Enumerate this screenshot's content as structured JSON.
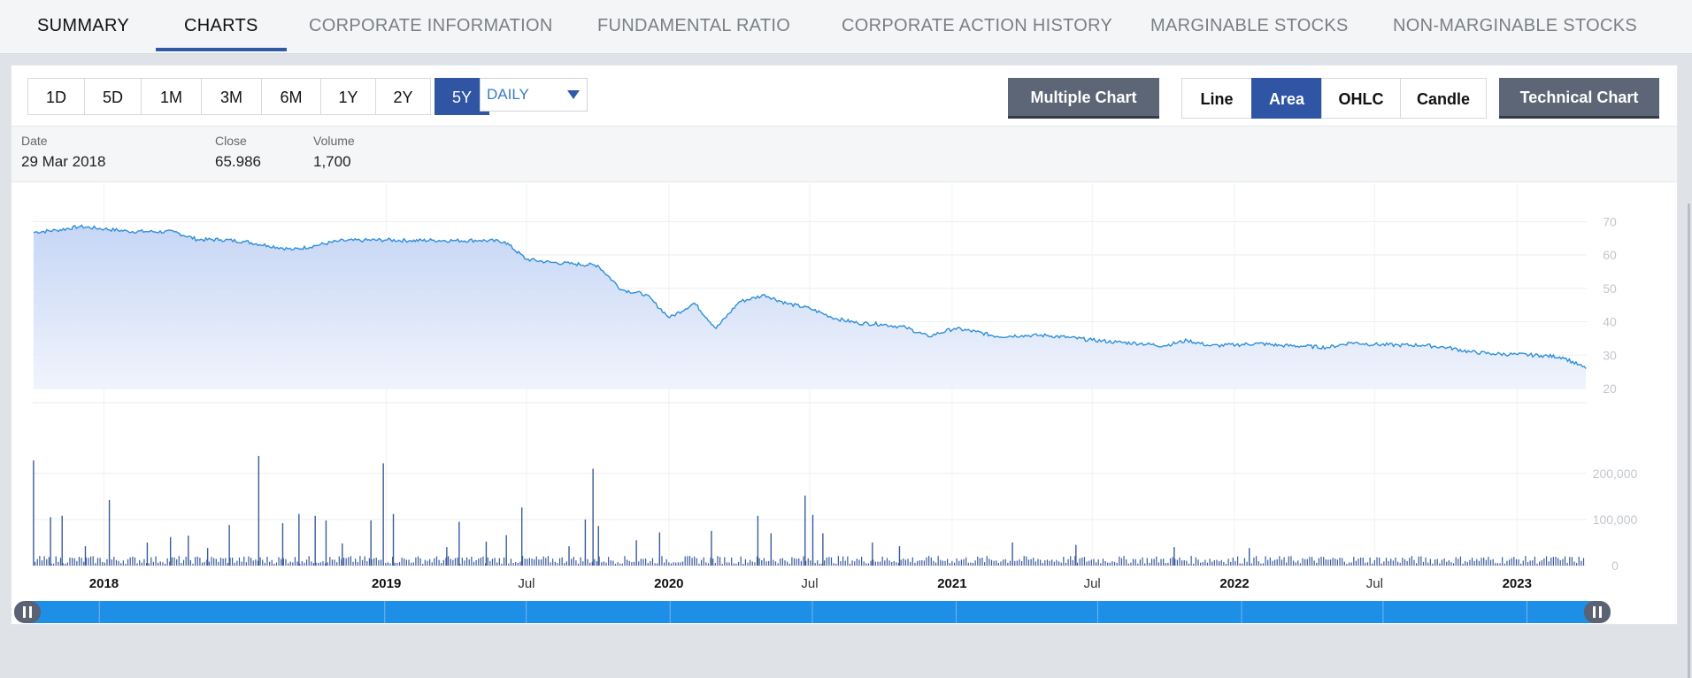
{
  "tabs": [
    {
      "label": "SUMMARY"
    },
    {
      "label": "CHARTS"
    },
    {
      "label": "CORPORATE INFORMATION"
    },
    {
      "label": "FUNDAMENTAL RATIO"
    },
    {
      "label": "CORPORATE ACTION HISTORY"
    },
    {
      "label": "MARGINABLE STOCKS"
    },
    {
      "label": "NON-MARGINABLE STOCKS"
    }
  ],
  "active_tab": "CHARTS",
  "toolbar": {
    "ranges": [
      "1D",
      "5D",
      "1M",
      "3M",
      "6M",
      "1Y",
      "2Y",
      "5Y"
    ],
    "selected_range": "5Y",
    "interval": "DAILY",
    "multiple_chart": "Multiple Chart",
    "series_types": [
      "Line",
      "Area",
      "OHLC",
      "Candle"
    ],
    "selected_series_type": "Area",
    "technical_chart": "Technical Chart"
  },
  "info": {
    "date_label": "Date",
    "date_value": "29 Mar 2018",
    "close_label": "Close",
    "close_value": "65.986",
    "volume_label": "Volume",
    "volume_value": "1,700"
  },
  "colors": {
    "accent": "#2f55a4",
    "line": "#2f8fd8",
    "volume": "#3a5a9a",
    "navigator": "#1e8fe6"
  },
  "chart_data": {
    "type": "area",
    "price": {
      "x": [
        "2017-10-02",
        "2017-11-01",
        "2017-12-01",
        "2018-01-02",
        "2018-02-01",
        "2018-03-01",
        "2018-04-02",
        "2018-05-02",
        "2018-06-01",
        "2018-07-02",
        "2018-08-01",
        "2018-09-03",
        "2018-10-01",
        "2018-11-01",
        "2018-12-03",
        "2019-01-02",
        "2019-02-01",
        "2019-03-01",
        "2019-04-01",
        "2019-05-02",
        "2019-06-03",
        "2019-07-01",
        "2019-08-01",
        "2019-09-02",
        "2019-10-01",
        "2019-11-01",
        "2019-12-02",
        "2020-01-02",
        "2020-02-03",
        "2020-03-02",
        "2020-04-01",
        "2020-05-04",
        "2020-06-01",
        "2020-07-01",
        "2020-08-03",
        "2020-09-01",
        "2020-10-01",
        "2020-11-02",
        "2020-12-01",
        "2021-01-04",
        "2021-02-01",
        "2021-03-01",
        "2021-04-01",
        "2021-05-03",
        "2021-06-01",
        "2021-07-01",
        "2021-08-02",
        "2021-09-01",
        "2021-10-01",
        "2021-11-01",
        "2021-12-01",
        "2022-01-03",
        "2022-02-01",
        "2022-03-01",
        "2022-04-01",
        "2022-05-02",
        "2022-06-01",
        "2022-07-01",
        "2022-08-01",
        "2022-09-01",
        "2022-10-03",
        "2022-11-01",
        "2022-12-01",
        "2023-01-02",
        "2023-02-01",
        "2023-03-01",
        "2023-03-31"
      ],
      "values": [
        66.8,
        67.4,
        68.5,
        67.8,
        67.1,
        67.0,
        66.9,
        64.6,
        64.6,
        64.0,
        62.8,
        61.6,
        62.8,
        64.2,
        64.4,
        64.5,
        64.3,
        64.4,
        64.3,
        64.4,
        64.0,
        58.7,
        57.8,
        57.3,
        56.9,
        49.6,
        48.2,
        41.2,
        45.6,
        38.0,
        46.0,
        48.0,
        45.5,
        44.0,
        41.0,
        39.6,
        39.3,
        38.3,
        35.6,
        38.0,
        37.0,
        35.6,
        35.9,
        35.9,
        35.3,
        34.5,
        33.9,
        33.5,
        32.8,
        34.4,
        32.8,
        33.1,
        33.5,
        32.9,
        32.7,
        32.3,
        33.8,
        33.2,
        33.0,
        33.0,
        32.3,
        31.0,
        30.4,
        30.2,
        29.9,
        29.4,
        26.0
      ],
      "yticks": [
        20,
        30,
        40,
        50,
        60,
        70
      ]
    },
    "volume": {
      "yticks": [
        0,
        100000,
        200000
      ],
      "tick_labels": [
        "0",
        "100,000",
        "200,000"
      ],
      "spikes": [
        {
          "date": "2017-10-02",
          "v": 228000
        },
        {
          "date": "2017-10-24",
          "v": 105000
        },
        {
          "date": "2017-11-08",
          "v": 108000
        },
        {
          "date": "2017-12-08",
          "v": 42000
        },
        {
          "date": "2018-01-08",
          "v": 142000
        },
        {
          "date": "2018-02-26",
          "v": 50000
        },
        {
          "date": "2018-03-28",
          "v": 62000
        },
        {
          "date": "2018-04-20",
          "v": 65000
        },
        {
          "date": "2018-05-15",
          "v": 38000
        },
        {
          "date": "2018-06-12",
          "v": 88000
        },
        {
          "date": "2018-07-20",
          "v": 238000
        },
        {
          "date": "2018-08-20",
          "v": 92000
        },
        {
          "date": "2018-09-10",
          "v": 112000
        },
        {
          "date": "2018-10-01",
          "v": 108000
        },
        {
          "date": "2018-10-15",
          "v": 98000
        },
        {
          "date": "2018-11-05",
          "v": 48000
        },
        {
          "date": "2018-12-12",
          "v": 98000
        },
        {
          "date": "2018-12-28",
          "v": 222000
        },
        {
          "date": "2019-01-10",
          "v": 112000
        },
        {
          "date": "2019-03-20",
          "v": 40000
        },
        {
          "date": "2019-04-05",
          "v": 95000
        },
        {
          "date": "2019-05-10",
          "v": 52000
        },
        {
          "date": "2019-06-05",
          "v": 66000
        },
        {
          "date": "2019-06-25",
          "v": 126000
        },
        {
          "date": "2019-08-25",
          "v": 42000
        },
        {
          "date": "2019-09-15",
          "v": 100000
        },
        {
          "date": "2019-09-25",
          "v": 210000
        },
        {
          "date": "2019-10-02",
          "v": 86000
        },
        {
          "date": "2019-11-20",
          "v": 55000
        },
        {
          "date": "2019-12-20",
          "v": 72000
        },
        {
          "date": "2020-02-25",
          "v": 75000
        },
        {
          "date": "2020-04-25",
          "v": 108000
        },
        {
          "date": "2020-05-12",
          "v": 70000
        },
        {
          "date": "2020-06-25",
          "v": 152000
        },
        {
          "date": "2020-07-05",
          "v": 110000
        },
        {
          "date": "2020-07-18",
          "v": 70000
        },
        {
          "date": "2020-09-20",
          "v": 50000
        },
        {
          "date": "2020-10-25",
          "v": 42000
        },
        {
          "date": "2021-03-20",
          "v": 50000
        },
        {
          "date": "2021-06-10",
          "v": 45000
        },
        {
          "date": "2021-10-15",
          "v": 40000
        },
        {
          "date": "2022-01-20",
          "v": 38000
        }
      ]
    },
    "x_axis_labels": [
      "2018",
      "2019",
      "Jul",
      "2020",
      "Jul",
      "2021",
      "Jul",
      "2022",
      "Jul",
      "2023"
    ],
    "x_axis_label_dates": [
      "2018-01-01",
      "2019-01-01",
      "2019-07-01",
      "2020-01-01",
      "2020-07-01",
      "2021-01-01",
      "2021-07-01",
      "2022-01-01",
      "2022-07-01",
      "2023-01-01"
    ],
    "x_range": [
      "2017-10-01",
      "2023-04-01"
    ]
  }
}
